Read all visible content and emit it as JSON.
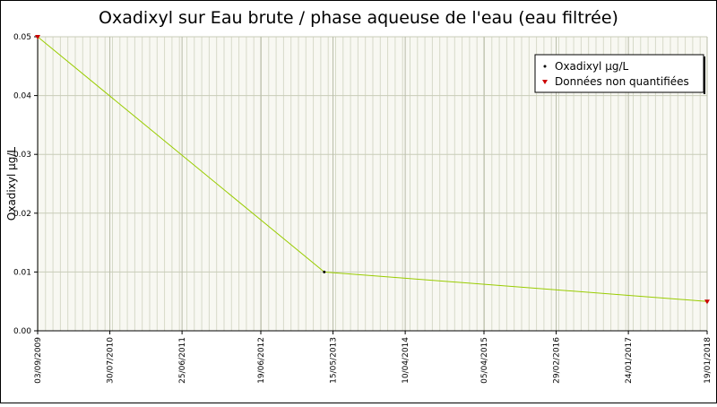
{
  "chart_data": {
    "type": "line",
    "title": "Oxadixyl sur Eau brute / phase aqueuse de l'eau (eau filtrée)",
    "y_label": "Oxadixyl µg/L",
    "x": [
      "03/09/2009",
      "05/04/2013",
      "19/01/2018"
    ],
    "xlim": [
      "03/09/2009",
      "19/01/2018"
    ],
    "xticks": [
      "03/09/2009",
      "30/07/2010",
      "25/06/2011",
      "19/06/2012",
      "15/05/2013",
      "10/04/2014",
      "05/04/2015",
      "29/02/2016",
      "24/01/2017",
      "19/01/2018"
    ],
    "ylim": [
      0,
      0.05
    ],
    "yticks": [
      {
        "value": 0,
        "label": "0.00"
      },
      {
        "value": 0.01,
        "label": "0.01"
      },
      {
        "value": 0.02,
        "label": "0.02"
      },
      {
        "value": 0.03,
        "label": "0.03"
      },
      {
        "value": 0.04,
        "label": "0.04"
      },
      {
        "value": 0.05,
        "label": "0.05"
      }
    ],
    "grid": true,
    "legend": "top-right",
    "series": [
      {
        "name": "Oxadixyl µg/L",
        "color": "#99cc00",
        "marker_color": "#000000",
        "values": [
          0.05,
          0.01,
          0.005
        ]
      },
      {
        "name": "Données non quantifiées",
        "color": "#cc0000",
        "values": [
          0.05,
          null,
          0.005
        ]
      }
    ]
  }
}
